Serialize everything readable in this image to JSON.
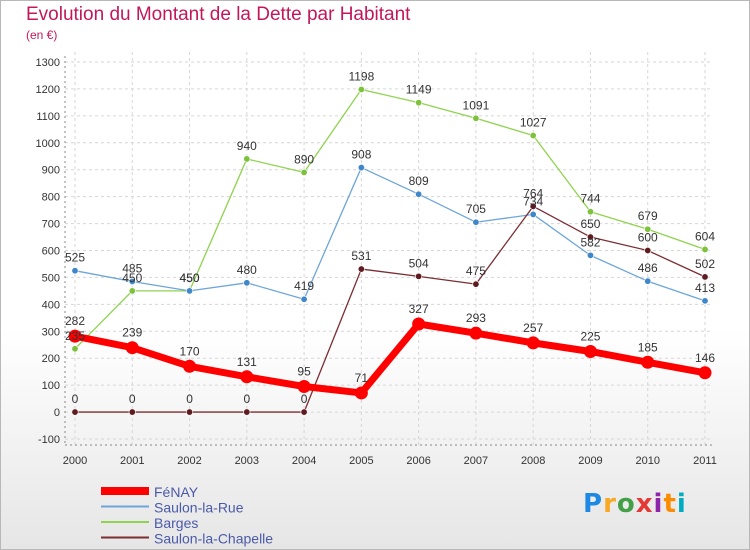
{
  "title": "Evolution du Montant de la Dette par Habitant",
  "subtitle": "(en €)",
  "brand": {
    "letters": [
      "P",
      "r",
      "o",
      "x",
      "i",
      "t",
      "i"
    ],
    "colors": [
      "#1e88e5",
      "#f9a825",
      "#43a047",
      "#e53935",
      "#8e24aa",
      "#fb8c00",
      "#00acc1"
    ]
  },
  "chart_data": {
    "type": "line",
    "x": [
      "2000",
      "2001",
      "2002",
      "2003",
      "2004",
      "2005",
      "2006",
      "2007",
      "2008",
      "2009",
      "2010",
      "2011"
    ],
    "ylim": [
      -100,
      1300
    ],
    "yticks": [
      "-100",
      "0",
      "100",
      "200",
      "300",
      "400",
      "500",
      "600",
      "700",
      "800",
      "900",
      "1000",
      "1100",
      "1200",
      "1300"
    ],
    "grid": true,
    "legend_position": "bottom-left",
    "series": [
      {
        "name": "Barges",
        "color": "#8fd34f",
        "marker": "#7cc23a",
        "values": [
          235,
          450,
          450,
          940,
          890,
          1198,
          1149,
          1091,
          1027,
          744,
          679,
          604
        ],
        "labels": [
          "235",
          "450",
          "450",
          "940",
          "890",
          "1198",
          "1149",
          "1091",
          "1027",
          "744",
          "679",
          "604"
        ]
      },
      {
        "name": "Saulon-la-Rue",
        "color": "#6ea6d9",
        "marker": "#3f87c9",
        "values": [
          525,
          485,
          450,
          480,
          419,
          908,
          809,
          705,
          734,
          582,
          486,
          413
        ],
        "labels": [
          "525",
          "485",
          "450",
          "480",
          "419",
          "908",
          "809",
          "705",
          "734",
          "582",
          "486",
          "413"
        ]
      },
      {
        "name": "Saulon-la-Chapelle",
        "color": "#7b2d33",
        "marker": "#5e1b20",
        "values": [
          0,
          0,
          0,
          0,
          0,
          531,
          504,
          475,
          764,
          650,
          600,
          502
        ],
        "labels": [
          "0",
          "0",
          "0",
          "0",
          "0",
          "531",
          "504",
          "475",
          "764",
          "650",
          "600",
          "502"
        ]
      },
      {
        "name": "FéNAY",
        "color": "#ff0000",
        "marker": "#ff0000",
        "values": [
          282,
          239,
          170,
          131,
          95,
          71,
          327,
          293,
          257,
          225,
          185,
          146
        ],
        "labels": [
          "282",
          "239",
          "170",
          "131",
          "95",
          "71",
          "327",
          "293",
          "257",
          "225",
          "185",
          "146"
        ]
      }
    ],
    "legend": [
      "FéNAY",
      "Saulon-la-Rue",
      "Barges",
      "Saulon-la-Chapelle"
    ]
  }
}
